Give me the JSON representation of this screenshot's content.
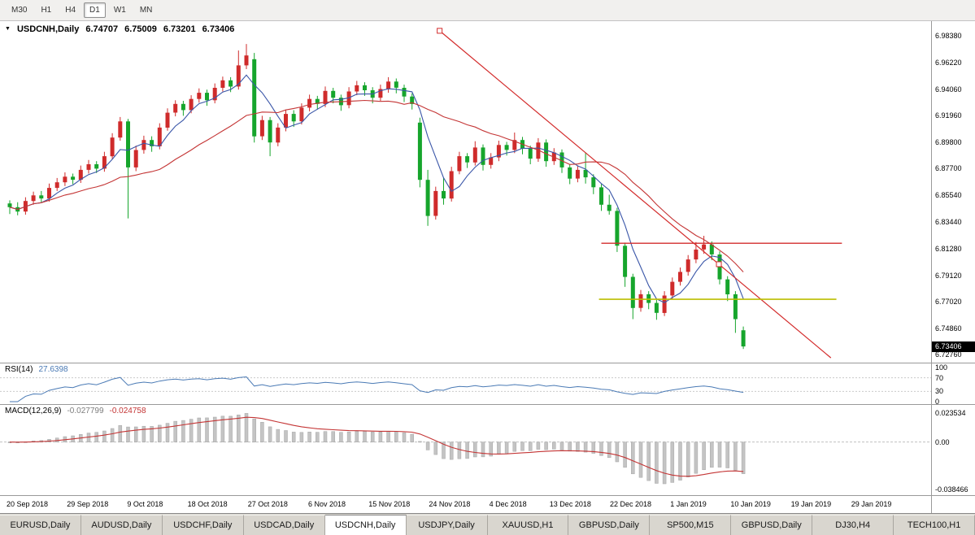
{
  "toolbar": {
    "timeframes": [
      "M30",
      "H1",
      "H4",
      "D1",
      "W1",
      "MN"
    ],
    "active": "D1"
  },
  "chart": {
    "title_symbol": "USDCNH,Daily",
    "ohlc": {
      "open": "6.74707",
      "high": "6.75009",
      "low": "6.73201",
      "close": "6.73406"
    },
    "price_badge": "6.73406"
  },
  "rsi": {
    "label": "RSI(14)",
    "value": "27.6398",
    "levels": [
      "100",
      "70",
      "30",
      "0"
    ]
  },
  "macd": {
    "label": "MACD(12,26,9)",
    "value_main": "-0.027799",
    "value_signal": "-0.024758",
    "scale_labels": [
      "0.023534",
      "0.00",
      "-0.038466"
    ]
  },
  "tabs": {
    "items": [
      "EURUSD,Daily",
      "AUDUSD,Daily",
      "USDCHF,Daily",
      "USDCAD,Daily",
      "USDCNH,Daily",
      "USDJPY,Daily",
      "XAUUSD,H1",
      "GBPUSD,Daily",
      "SP500,M15",
      "GBPUSD,Daily",
      "DJ30,H4",
      "TECH100,H1"
    ],
    "active_index": 4
  },
  "chart_data": {
    "type": "candlestick",
    "symbol": "USDCNH",
    "timeframe": "Daily",
    "y_axis_labels": [
      "6.98380",
      "6.96220",
      "6.94060",
      "6.91960",
      "6.89800",
      "6.87700",
      "6.85540",
      "6.83440",
      "6.81280",
      "6.79120",
      "6.77020",
      "6.74860",
      "6.72760"
    ],
    "x_axis_labels": [
      "20 Sep 2018",
      "29 Sep 2018",
      "9 Oct 2018",
      "18 Oct 2018",
      "27 Oct 2018",
      "6 Nov 2018",
      "15 Nov 2018",
      "24 Nov 2018",
      "4 Dec 2018",
      "13 Dec 2018",
      "22 Dec 2018",
      "1 Jan 2019",
      "10 Jan 2019",
      "19 Jan 2019",
      "29 Jan 2019"
    ],
    "candles": [
      [
        6.849,
        6.8515,
        6.8405,
        6.846
      ],
      [
        6.846,
        6.85,
        6.8395,
        6.8425
      ],
      [
        6.8425,
        6.854,
        6.84,
        6.851
      ],
      [
        6.851,
        6.8585,
        6.848,
        6.8555
      ],
      [
        6.8555,
        6.859,
        6.85,
        6.853
      ],
      [
        6.853,
        6.865,
        6.8505,
        6.8615
      ],
      [
        6.8615,
        6.8695,
        6.859,
        6.866
      ],
      [
        6.866,
        6.874,
        6.863,
        6.8705
      ],
      [
        6.8705,
        6.873,
        6.8645,
        6.868
      ],
      [
        6.868,
        6.8795,
        6.8655,
        6.876
      ],
      [
        6.876,
        6.884,
        6.873,
        6.8805
      ],
      [
        6.8805,
        6.883,
        6.8735,
        6.877
      ],
      [
        6.877,
        6.8905,
        6.8745,
        6.887
      ],
      [
        6.887,
        6.9055,
        6.8845,
        6.902
      ],
      [
        6.902,
        6.9185,
        6.8995,
        6.915
      ],
      [
        6.915,
        6.917,
        6.837,
        6.878
      ],
      [
        6.878,
        6.8955,
        6.875,
        6.892
      ],
      [
        6.892,
        6.9035,
        6.889,
        6.9
      ],
      [
        6.9,
        6.903,
        6.8905,
        6.895
      ],
      [
        6.895,
        6.9135,
        6.8925,
        6.91
      ],
      [
        6.91,
        6.9255,
        6.9075,
        6.922
      ],
      [
        6.922,
        6.932,
        6.919,
        6.929
      ],
      [
        6.929,
        6.9315,
        6.9195,
        6.924
      ],
      [
        6.924,
        6.936,
        6.9215,
        6.933
      ],
      [
        6.933,
        6.9415,
        6.93,
        6.938
      ],
      [
        6.938,
        6.9405,
        6.9275,
        6.932
      ],
      [
        6.932,
        6.9455,
        6.9295,
        6.942
      ],
      [
        6.942,
        6.951,
        6.939,
        6.948
      ],
      [
        6.948,
        6.9505,
        6.9385,
        6.943
      ],
      [
        6.943,
        6.972,
        6.9405,
        6.96
      ],
      [
        6.96,
        6.9772,
        6.957,
        6.968
      ],
      [
        6.965,
        6.97,
        6.898,
        6.903
      ],
      [
        6.903,
        6.9195,
        6.9,
        6.916
      ],
      [
        6.916,
        6.9185,
        6.887,
        6.898
      ],
      [
        6.898,
        6.9135,
        6.895,
        6.91
      ],
      [
        6.91,
        6.9245,
        6.907,
        6.921
      ],
      [
        6.921,
        6.924,
        6.9105,
        6.915
      ],
      [
        6.915,
        6.9295,
        6.9125,
        6.926
      ],
      [
        6.926,
        6.9365,
        6.923,
        6.933
      ],
      [
        6.933,
        6.9355,
        6.9245,
        6.929
      ],
      [
        6.929,
        6.943,
        6.9265,
        6.9395
      ],
      [
        6.9395,
        6.942,
        6.9295,
        6.934
      ],
      [
        6.934,
        6.9365,
        6.9235,
        6.928
      ],
      [
        6.928,
        6.9425,
        6.9255,
        6.939
      ],
      [
        6.939,
        6.9475,
        6.936,
        6.944
      ],
      [
        6.944,
        6.9465,
        6.9355,
        6.94
      ],
      [
        6.94,
        6.9425,
        6.9295,
        6.934
      ],
      [
        6.934,
        6.9445,
        6.9315,
        6.941
      ],
      [
        6.941,
        6.9505,
        6.938,
        6.947
      ],
      [
        6.947,
        6.9495,
        6.9375,
        6.942
      ],
      [
        6.942,
        6.9445,
        6.9305,
        6.935
      ],
      [
        6.935,
        6.9375,
        6.9245,
        6.929
      ],
      [
        6.914,
        6.918,
        6.862,
        6.868
      ],
      [
        6.868,
        6.876,
        6.831,
        6.839
      ],
      [
        6.839,
        6.8625,
        6.836,
        6.859
      ],
      [
        6.859,
        6.87,
        6.848,
        6.853
      ],
      [
        6.853,
        6.8785,
        6.8505,
        6.875
      ],
      [
        6.875,
        6.8905,
        6.8725,
        6.887
      ],
      [
        6.887,
        6.8895,
        6.8775,
        6.882
      ],
      [
        6.882,
        6.899,
        6.8795,
        6.894
      ],
      [
        6.894,
        6.8965,
        6.8755,
        6.88
      ],
      [
        6.88,
        6.8895,
        6.877,
        6.886
      ],
      [
        6.886,
        6.8995,
        6.883,
        6.896
      ],
      [
        6.896,
        6.8985,
        6.8875,
        6.892
      ],
      [
        6.892,
        6.906,
        6.8895,
        6.9
      ],
      [
        6.9,
        6.9025,
        6.8885,
        6.893
      ],
      [
        6.893,
        6.8955,
        6.8805,
        6.885
      ],
      [
        6.885,
        6.9015,
        6.8825,
        6.898
      ],
      [
        6.898,
        6.9005,
        6.8785,
        6.883
      ],
      [
        6.883,
        6.8935,
        6.88,
        6.89
      ],
      [
        6.89,
        6.8925,
        6.8735,
        6.878
      ],
      [
        6.878,
        6.8805,
        6.8645,
        6.869
      ],
      [
        6.869,
        6.8795,
        6.866,
        6.876
      ],
      [
        6.876,
        6.89,
        6.865,
        6.87
      ],
      [
        6.87,
        6.8725,
        6.8565,
        6.862
      ],
      [
        6.862,
        6.8645,
        6.843,
        6.848
      ],
      [
        6.848,
        6.856,
        6.84,
        6.843
      ],
      [
        6.843,
        6.8455,
        6.81,
        6.815
      ],
      [
        6.815,
        6.8175,
        6.782,
        6.79
      ],
      [
        6.79,
        6.7925,
        6.756,
        6.765
      ],
      [
        6.765,
        6.7795,
        6.762,
        6.776
      ],
      [
        6.776,
        6.7785,
        6.764,
        6.769
      ],
      [
        6.769,
        6.7715,
        6.7555,
        6.761
      ],
      [
        6.761,
        6.7785,
        6.7585,
        6.775
      ],
      [
        6.775,
        6.7895,
        6.772,
        6.786
      ],
      [
        6.786,
        6.7975,
        6.783,
        6.794
      ],
      [
        6.794,
        6.8075,
        6.791,
        6.804
      ],
      [
        6.804,
        6.818,
        6.801,
        6.812
      ],
      [
        6.812,
        6.823,
        6.8085,
        6.816
      ],
      [
        6.816,
        6.8185,
        6.8035,
        6.808
      ],
      [
        6.808,
        6.8105,
        6.784,
        6.788
      ],
      [
        6.788,
        6.7905,
        6.7705,
        6.776
      ],
      [
        6.776,
        6.7785,
        6.745,
        6.756
      ],
      [
        6.74707,
        6.75009,
        6.73201,
        6.73406
      ]
    ],
    "overlays": {
      "ma_fast_period": 5,
      "ma_slow_period": 20,
      "trendline": {
        "d1": 54.5,
        "p1": 6.9878,
        "d2": 104.1,
        "p2": 6.7249,
        "handles_d": [
          54.5,
          89.9
        ]
      },
      "hline_red": {
        "price": 6.817,
        "d1": 75.0,
        "d2": 105.5
      },
      "hline_yellow": {
        "price": 6.772,
        "d1": 74.7,
        "d2": 104.8
      }
    },
    "colors": {
      "bull": "#cf2b2b",
      "bear": "#16a52c",
      "ma_fast": "#3a56a8",
      "ma_slow": "#c43535",
      "trend": "#d32b2b",
      "hline": "#d32b2b",
      "yline": "#bcbe00",
      "rsi": "#4a7ab5",
      "macd_hist": "#c4c4c4",
      "macd_signal": "#c43535"
    }
  }
}
